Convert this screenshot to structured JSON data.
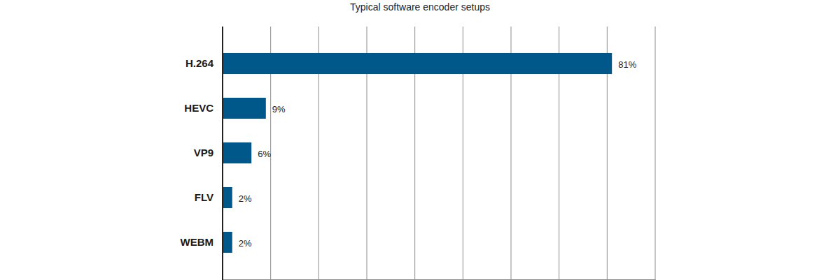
{
  "chart_data": {
    "type": "bar",
    "title": "Typical software encoder setups",
    "orientation": "horizontal",
    "categories": [
      "H.264",
      "HEVC",
      "VP9",
      "FLV",
      "WEBM"
    ],
    "values": [
      81,
      9,
      6,
      2,
      2
    ],
    "value_labels": [
      "81%",
      "9%",
      "6%",
      "2%",
      "2%"
    ],
    "data_labels": true,
    "color": "#00578a",
    "xlim": [
      0,
      90
    ],
    "xticks": [
      0,
      10,
      20,
      30,
      40,
      50,
      60,
      70,
      80,
      90
    ],
    "grid": true,
    "tick_labels": "y"
  }
}
